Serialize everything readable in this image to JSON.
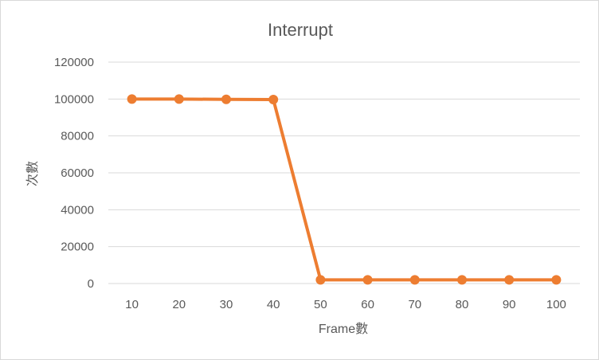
{
  "chart_data": {
    "type": "line",
    "title": "Interrupt",
    "xlabel": "Frame數",
    "ylabel": "次數",
    "categories": [
      "10",
      "20",
      "30",
      "40",
      "50",
      "60",
      "70",
      "80",
      "90",
      "100"
    ],
    "series": [
      {
        "values": [
          100000,
          100000,
          99800,
          99700,
          2000,
          2000,
          2000,
          2000,
          2000,
          2000
        ],
        "color": "#ed7d31"
      }
    ],
    "ylim": [
      0,
      120000
    ],
    "yticks": [
      "0",
      "20000",
      "40000",
      "60000",
      "80000",
      "100000",
      "120000"
    ],
    "grid": true,
    "legend": "none",
    "gridline_color": "#d9d9d9",
    "marker": "circle"
  }
}
